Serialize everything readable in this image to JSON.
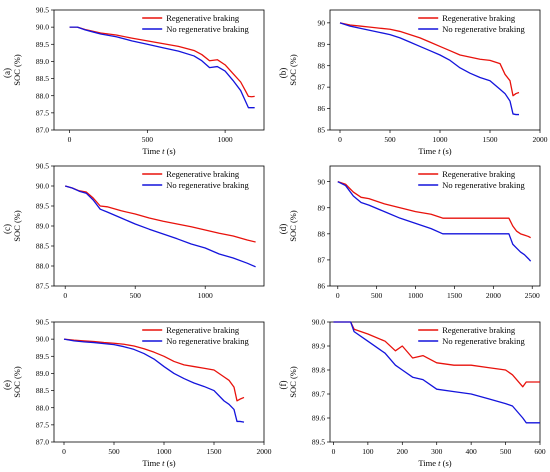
{
  "colors": {
    "regen": "#e8120c",
    "noregen": "#1414dc"
  },
  "chart_data": [
    {
      "type": "line",
      "panel_label": "(a)",
      "xlabel": "Time t (s)",
      "ylabel": "SOC (%)",
      "xlim": [
        -100,
        1250
      ],
      "ylim": [
        87.0,
        90.5
      ],
      "xticks": [
        0,
        500,
        1000
      ],
      "yticks": [
        87.0,
        87.5,
        88.0,
        88.5,
        89.0,
        89.5,
        90.0,
        90.5
      ],
      "ytick_format": "fixed1",
      "legend_position": "top-right",
      "series": [
        {
          "name": "Regenerative braking",
          "color": "#e8120c",
          "x": [
            0,
            50,
            100,
            150,
            200,
            300,
            400,
            500,
            600,
            700,
            800,
            850,
            900,
            950,
            1000,
            1050,
            1100,
            1130,
            1150,
            1170,
            1190
          ],
          "y": [
            90.0,
            90.0,
            89.93,
            89.88,
            89.83,
            89.77,
            89.68,
            89.6,
            89.52,
            89.44,
            89.32,
            89.2,
            89.02,
            89.05,
            88.9,
            88.65,
            88.4,
            88.15,
            87.98,
            87.97,
            87.98
          ]
        },
        {
          "name": "No regenerative braking",
          "color": "#1414dc",
          "x": [
            0,
            50,
            100,
            150,
            200,
            300,
            400,
            500,
            600,
            700,
            800,
            850,
            900,
            950,
            1000,
            1050,
            1100,
            1130,
            1150,
            1170,
            1190
          ],
          "y": [
            90.0,
            90.0,
            89.92,
            89.86,
            89.8,
            89.72,
            89.6,
            89.5,
            89.4,
            89.3,
            89.16,
            89.02,
            88.82,
            88.85,
            88.72,
            88.45,
            88.15,
            87.85,
            87.65,
            87.65,
            87.65
          ]
        }
      ]
    },
    {
      "type": "line",
      "panel_label": "(b)",
      "xlabel": "Time t (s)",
      "ylabel": "SOC (%)",
      "xlim": [
        -100,
        2000
      ],
      "ylim": [
        85,
        90.6
      ],
      "xticks": [
        0,
        500,
        1000,
        1500,
        2000
      ],
      "yticks": [
        85,
        86,
        87,
        88,
        89,
        90
      ],
      "ytick_format": "int",
      "legend_position": "top-right",
      "series": [
        {
          "name": "Regenerative braking",
          "color": "#e8120c",
          "x": [
            0,
            100,
            200,
            300,
            400,
            500,
            600,
            700,
            800,
            900,
            1000,
            1100,
            1200,
            1300,
            1400,
            1500,
            1600,
            1650,
            1700,
            1730,
            1760,
            1790
          ],
          "y": [
            90.0,
            89.9,
            89.85,
            89.8,
            89.75,
            89.7,
            89.6,
            89.45,
            89.3,
            89.1,
            88.9,
            88.7,
            88.5,
            88.4,
            88.3,
            88.25,
            88.1,
            87.6,
            87.3,
            86.6,
            86.7,
            86.75
          ]
        },
        {
          "name": "No regenerative braking",
          "color": "#1414dc",
          "x": [
            0,
            100,
            200,
            300,
            400,
            500,
            600,
            700,
            800,
            900,
            1000,
            1100,
            1200,
            1300,
            1400,
            1500,
            1600,
            1650,
            1700,
            1730,
            1760,
            1790
          ],
          "y": [
            90.0,
            89.85,
            89.75,
            89.65,
            89.55,
            89.45,
            89.3,
            89.1,
            88.9,
            88.7,
            88.5,
            88.25,
            87.9,
            87.65,
            87.45,
            87.3,
            86.9,
            86.7,
            86.35,
            85.75,
            85.72,
            85.72
          ]
        }
      ]
    },
    {
      "type": "line",
      "panel_label": "(c)",
      "xlabel": "",
      "ylabel": "SOC (%)",
      "xlim": [
        -80,
        1420
      ],
      "ylim": [
        87.5,
        90.5
      ],
      "xticks": [
        0,
        500,
        1000
      ],
      "yticks": [
        87.5,
        88.0,
        88.5,
        89.0,
        89.5,
        90.0,
        90.5
      ],
      "ytick_format": "fixed1",
      "legend_position": "top-right",
      "series": [
        {
          "name": "Regenerative braking",
          "color": "#e8120c",
          "x": [
            0,
            50,
            100,
            150,
            200,
            250,
            300,
            400,
            500,
            600,
            700,
            800,
            900,
            1000,
            1100,
            1200,
            1300,
            1360
          ],
          "y": [
            90.0,
            89.95,
            89.88,
            89.85,
            89.7,
            89.5,
            89.48,
            89.38,
            89.3,
            89.2,
            89.12,
            89.05,
            88.98,
            88.9,
            88.82,
            88.75,
            88.65,
            88.6
          ]
        },
        {
          "name": "No regenerative braking",
          "color": "#1414dc",
          "x": [
            0,
            50,
            100,
            150,
            200,
            250,
            300,
            400,
            500,
            600,
            700,
            800,
            900,
            1000,
            1100,
            1200,
            1300,
            1360
          ],
          "y": [
            90.0,
            89.95,
            89.87,
            89.82,
            89.65,
            89.42,
            89.35,
            89.2,
            89.05,
            88.92,
            88.8,
            88.68,
            88.55,
            88.45,
            88.3,
            88.2,
            88.07,
            87.98
          ]
        }
      ]
    },
    {
      "type": "line",
      "panel_label": "(d)",
      "xlabel": "",
      "ylabel": "SOC (%)",
      "xlim": [
        -100,
        2600
      ],
      "ylim": [
        86,
        90.6
      ],
      "xticks": [
        0,
        500,
        1000,
        1500,
        2000,
        2500
      ],
      "yticks": [
        86,
        87,
        88,
        89,
        90
      ],
      "ytick_format": "int",
      "legend_position": "top-right",
      "series": [
        {
          "name": "Regenerative braking",
          "color": "#e8120c",
          "x": [
            0,
            100,
            200,
            300,
            400,
            600,
            800,
            1000,
            1200,
            1350,
            1500,
            1800,
            2100,
            2200,
            2250,
            2300,
            2350,
            2400,
            2450,
            2480
          ],
          "y": [
            90.0,
            89.9,
            89.6,
            89.4,
            89.35,
            89.15,
            89.0,
            88.85,
            88.75,
            88.6,
            88.6,
            88.6,
            88.6,
            88.6,
            88.3,
            88.1,
            88.0,
            87.95,
            87.9,
            87.85
          ]
        },
        {
          "name": "No regenerative braking",
          "color": "#1414dc",
          "x": [
            0,
            100,
            200,
            300,
            400,
            600,
            800,
            1000,
            1200,
            1350,
            1500,
            1800,
            2100,
            2200,
            2250,
            2300,
            2350,
            2400,
            2450,
            2480
          ],
          "y": [
            90.0,
            89.85,
            89.45,
            89.2,
            89.1,
            88.85,
            88.6,
            88.4,
            88.2,
            88.0,
            88.0,
            88.0,
            88.0,
            88.0,
            87.6,
            87.45,
            87.3,
            87.2,
            87.05,
            86.95
          ]
        }
      ]
    },
    {
      "type": "line",
      "panel_label": "(e)",
      "xlabel": "Time t (s)",
      "ylabel": "SOC (%)",
      "xlim": [
        -100,
        2000
      ],
      "ylim": [
        87.0,
        90.5
      ],
      "xticks": [
        0,
        500,
        1000,
        1500,
        2000
      ],
      "yticks": [
        87.0,
        87.5,
        88.0,
        88.5,
        89.0,
        89.5,
        90.0,
        90.5
      ],
      "ytick_format": "fixed1",
      "legend_position": "top-right",
      "series": [
        {
          "name": "Regenerative braking",
          "color": "#e8120c",
          "x": [
            0,
            100,
            200,
            300,
            400,
            500,
            600,
            700,
            800,
            900,
            1000,
            1100,
            1200,
            1300,
            1400,
            1500,
            1600,
            1650,
            1700,
            1730,
            1760,
            1800
          ],
          "y": [
            90.0,
            89.97,
            89.95,
            89.93,
            89.9,
            89.88,
            89.85,
            89.8,
            89.72,
            89.62,
            89.5,
            89.35,
            89.25,
            89.2,
            89.15,
            89.1,
            88.9,
            88.8,
            88.6,
            88.2,
            88.25,
            88.3
          ]
        },
        {
          "name": "No regenerative braking",
          "color": "#1414dc",
          "x": [
            0,
            100,
            200,
            300,
            400,
            500,
            600,
            700,
            800,
            900,
            1000,
            1100,
            1200,
            1300,
            1400,
            1500,
            1600,
            1650,
            1700,
            1730,
            1760,
            1800
          ],
          "y": [
            90.0,
            89.95,
            89.92,
            89.9,
            89.87,
            89.84,
            89.78,
            89.7,
            89.58,
            89.42,
            89.2,
            89.0,
            88.85,
            88.72,
            88.62,
            88.5,
            88.2,
            88.1,
            87.95,
            87.6,
            87.6,
            87.58
          ]
        }
      ]
    },
    {
      "type": "line",
      "panel_label": "(f)",
      "xlabel": "Time t (s)",
      "ylabel": "SOC (%)",
      "xlim": [
        -10,
        600
      ],
      "ylim": [
        89.5,
        90.0
      ],
      "xticks": [
        0,
        100,
        200,
        300,
        400,
        500,
        600
      ],
      "yticks": [
        89.5,
        89.6,
        89.7,
        89.8,
        89.9,
        90.0
      ],
      "ytick_format": "fixed1",
      "legend_position": "top-right",
      "series": [
        {
          "name": "Regenerative braking",
          "color": "#e8120c",
          "x": [
            0,
            50,
            60,
            100,
            150,
            180,
            200,
            230,
            260,
            300,
            350,
            400,
            450,
            500,
            520,
            550,
            560,
            580,
            600
          ],
          "y": [
            90.0,
            90.0,
            89.97,
            89.95,
            89.92,
            89.88,
            89.9,
            89.85,
            89.86,
            89.83,
            89.82,
            89.82,
            89.81,
            89.8,
            89.78,
            89.73,
            89.75,
            89.75,
            89.75
          ]
        },
        {
          "name": "No regenerative braking",
          "color": "#1414dc",
          "x": [
            0,
            50,
            60,
            100,
            150,
            180,
            200,
            230,
            260,
            300,
            350,
            400,
            450,
            500,
            520,
            550,
            560,
            580,
            600
          ],
          "y": [
            90.0,
            90.0,
            89.96,
            89.92,
            89.87,
            89.82,
            89.8,
            89.77,
            89.76,
            89.72,
            89.71,
            89.7,
            89.68,
            89.66,
            89.65,
            89.6,
            89.58,
            89.58,
            89.58
          ]
        }
      ]
    }
  ]
}
